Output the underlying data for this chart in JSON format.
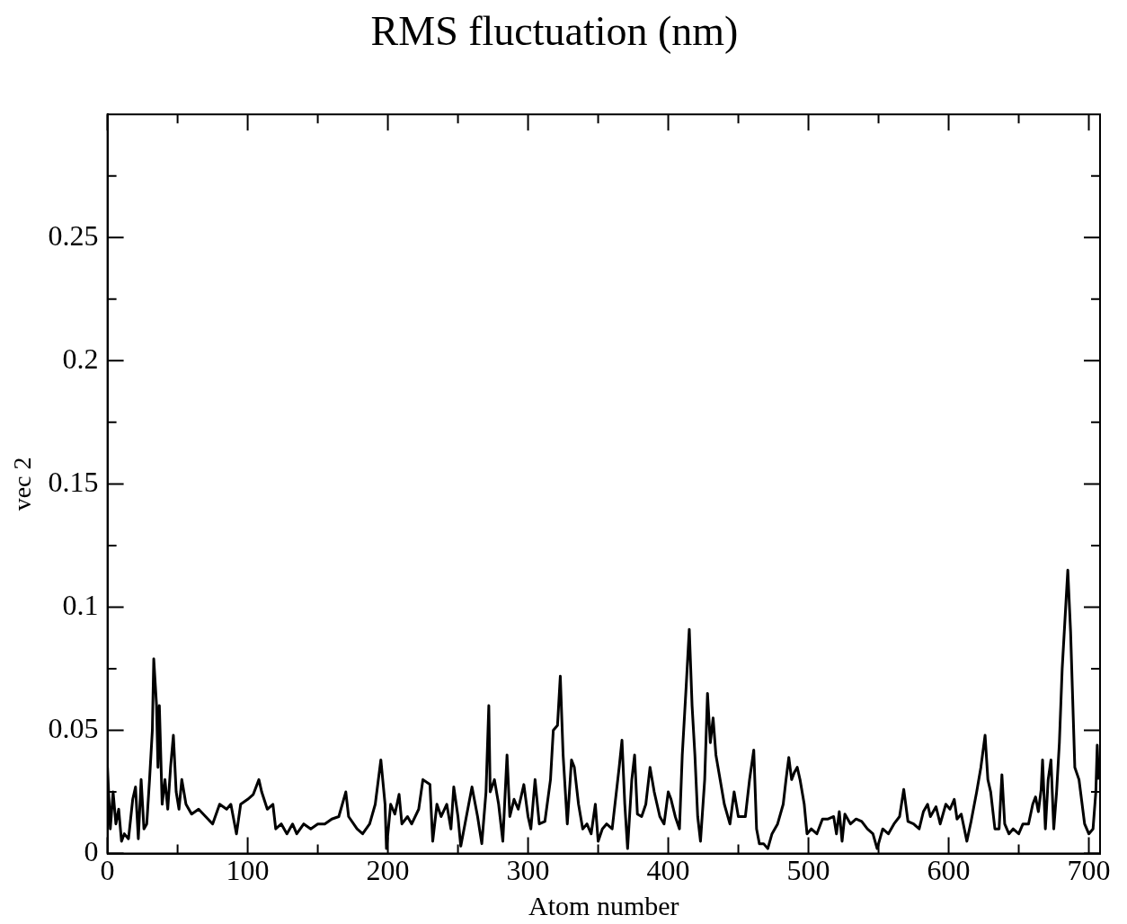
{
  "chart_data": {
    "type": "line",
    "title": "RMS fluctuation (nm)",
    "xlabel": "Atom number",
    "ylabel": "vec 2",
    "color": "#000000",
    "marker": "none",
    "line_style": "solid",
    "grid": false,
    "legend": false,
    "xlim": [
      0,
      708
    ],
    "xticks": [
      0,
      {
        "value": 50,
        "label": null
      },
      100,
      {
        "value": 150,
        "label": null
      },
      200,
      {
        "value": 250,
        "label": null
      },
      300,
      {
        "value": 350,
        "label": null
      },
      400,
      {
        "value": 450,
        "label": null
      },
      500,
      {
        "value": 550,
        "label": null
      },
      600,
      {
        "value": 650,
        "label": null
      },
      700
    ],
    "ylim": [
      0,
      0.3
    ],
    "yticks": [
      0,
      {
        "value": 0.025,
        "label": null
      },
      0.05,
      {
        "value": 0.075,
        "label": null
      },
      0.1,
      {
        "value": 0.125,
        "label": null
      },
      0.15,
      {
        "value": 0.175,
        "label": null
      },
      0.2,
      {
        "value": 0.225,
        "label": null
      },
      0.25,
      {
        "value": 0.275,
        "label": null
      }
    ],
    "x": [
      0,
      2,
      4,
      6,
      8,
      10,
      12,
      15,
      18,
      20,
      22,
      24,
      26,
      28,
      30,
      32,
      33,
      35,
      36,
      37,
      39,
      41,
      43,
      45,
      47,
      49,
      51,
      53,
      56,
      60,
      65,
      70,
      75,
      80,
      85,
      88,
      92,
      95,
      100,
      104,
      108,
      110,
      114,
      118,
      120,
      124,
      128,
      132,
      135,
      140,
      145,
      150,
      155,
      160,
      165,
      170,
      172,
      178,
      182,
      187,
      191,
      195,
      198,
      199,
      202,
      205,
      208,
      210,
      214,
      217,
      222,
      225,
      230,
      232,
      235,
      238,
      242,
      245,
      247,
      250,
      252,
      255,
      260,
      264,
      267,
      270,
      272,
      273,
      276,
      279,
      282,
      285,
      287,
      290,
      293,
      297,
      300,
      302,
      305,
      308,
      312,
      316,
      318,
      321,
      323,
      325,
      328,
      331,
      333,
      336,
      339,
      342,
      345,
      348,
      350,
      353,
      356,
      360,
      365,
      367,
      369,
      371,
      374,
      376,
      378,
      381,
      384,
      387,
      390,
      394,
      397,
      400,
      402,
      405,
      408,
      410,
      413,
      415,
      417,
      419,
      421,
      423,
      426,
      428,
      430,
      432,
      434,
      437,
      440,
      444,
      447,
      450,
      455,
      458,
      461,
      463,
      465,
      468,
      471,
      474,
      478,
      482,
      484,
      486,
      488,
      490,
      492,
      494,
      497,
      499,
      502,
      506,
      510,
      514,
      518,
      520,
      522,
      524,
      526,
      530,
      534,
      538,
      542,
      546,
      549,
      553,
      557,
      561,
      565,
      568,
      571,
      575,
      579,
      582,
      585,
      587,
      591,
      594,
      598,
      601,
      604,
      606,
      609,
      613,
      616,
      620,
      623,
      626,
      628,
      630,
      633,
      636,
      638,
      640,
      643,
      646,
      650,
      653,
      657,
      660,
      662,
      664,
      666,
      667,
      669,
      671,
      673,
      675,
      677,
      679,
      681,
      683,
      685,
      687,
      690,
      693,
      697,
      700,
      703,
      705,
      706,
      707
    ],
    "values": [
      0.035,
      0.01,
      0.025,
      0.012,
      0.018,
      0.005,
      0.008,
      0.006,
      0.022,
      0.027,
      0.006,
      0.03,
      0.01,
      0.012,
      0.03,
      0.05,
      0.079,
      0.06,
      0.035,
      0.06,
      0.02,
      0.03,
      0.018,
      0.035,
      0.048,
      0.025,
      0.018,
      0.03,
      0.02,
      0.016,
      0.018,
      0.015,
      0.012,
      0.02,
      0.018,
      0.02,
      0.008,
      0.02,
      0.022,
      0.024,
      0.03,
      0.025,
      0.018,
      0.02,
      0.01,
      0.012,
      0.008,
      0.012,
      0.008,
      0.012,
      0.01,
      0.012,
      0.012,
      0.014,
      0.015,
      0.025,
      0.015,
      0.01,
      0.008,
      0.012,
      0.02,
      0.038,
      0.02,
      0.002,
      0.02,
      0.016,
      0.024,
      0.012,
      0.015,
      0.012,
      0.018,
      0.03,
      0.028,
      0.005,
      0.02,
      0.015,
      0.02,
      0.01,
      0.027,
      0.015,
      0.003,
      0.012,
      0.027,
      0.015,
      0.004,
      0.025,
      0.06,
      0.025,
      0.03,
      0.02,
      0.005,
      0.04,
      0.015,
      0.022,
      0.018,
      0.028,
      0.015,
      0.01,
      0.03,
      0.012,
      0.013,
      0.03,
      0.05,
      0.052,
      0.072,
      0.04,
      0.012,
      0.038,
      0.035,
      0.02,
      0.01,
      0.012,
      0.008,
      0.02,
      0.005,
      0.01,
      0.012,
      0.01,
      0.035,
      0.046,
      0.02,
      0.002,
      0.03,
      0.04,
      0.016,
      0.015,
      0.02,
      0.035,
      0.025,
      0.015,
      0.012,
      0.025,
      0.022,
      0.015,
      0.01,
      0.04,
      0.07,
      0.091,
      0.06,
      0.04,
      0.015,
      0.005,
      0.03,
      0.065,
      0.045,
      0.055,
      0.04,
      0.03,
      0.02,
      0.012,
      0.025,
      0.015,
      0.015,
      0.03,
      0.042,
      0.01,
      0.004,
      0.004,
      0.002,
      0.008,
      0.012,
      0.02,
      0.03,
      0.039,
      0.03,
      0.033,
      0.035,
      0.03,
      0.02,
      0.008,
      0.01,
      0.008,
      0.014,
      0.014,
      0.015,
      0.008,
      0.017,
      0.005,
      0.016,
      0.012,
      0.014,
      0.013,
      0.01,
      0.008,
      0.002,
      0.01,
      0.008,
      0.012,
      0.015,
      0.026,
      0.013,
      0.012,
      0.01,
      0.017,
      0.02,
      0.015,
      0.019,
      0.012,
      0.02,
      0.018,
      0.022,
      0.014,
      0.016,
      0.005,
      0.013,
      0.025,
      0.035,
      0.048,
      0.03,
      0.025,
      0.01,
      0.01,
      0.032,
      0.012,
      0.008,
      0.01,
      0.008,
      0.012,
      0.012,
      0.02,
      0.023,
      0.017,
      0.026,
      0.038,
      0.01,
      0.03,
      0.038,
      0.01,
      0.025,
      0.045,
      0.075,
      0.095,
      0.115,
      0.09,
      0.035,
      0.03,
      0.012,
      0.008,
      0.01,
      0.025,
      0.044,
      0.03
    ]
  }
}
